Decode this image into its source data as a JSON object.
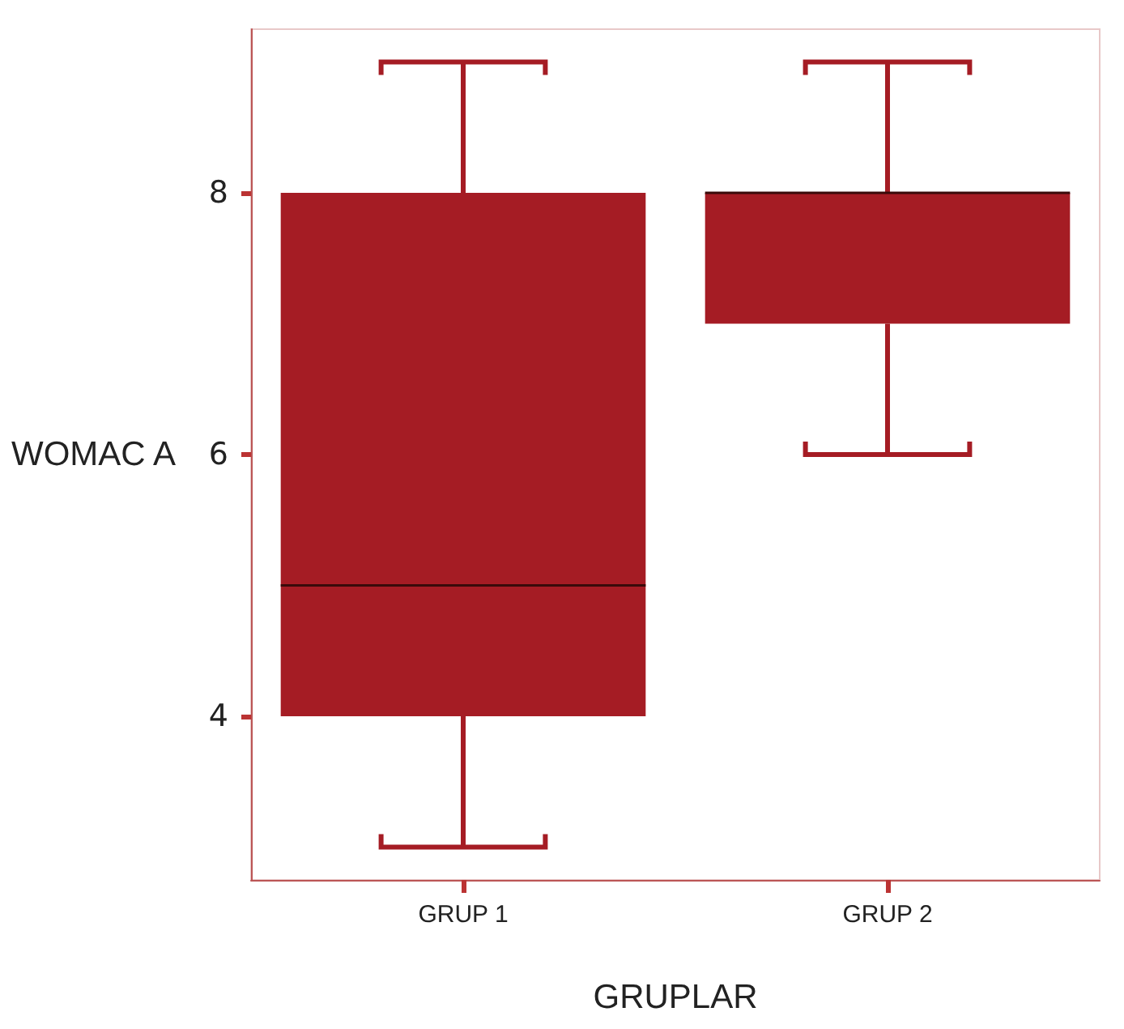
{
  "chart_data": {
    "type": "box",
    "xlabel": "GRUPLAR",
    "ylabel": "WOMAC A",
    "categories": [
      "GRUP 1",
      "GRUP 2"
    ],
    "color": "#a51c24",
    "ylim": [
      2.75,
      9.25
    ],
    "yticks": [
      4,
      6,
      8
    ],
    "grid": false,
    "boxes": [
      {
        "low": 3,
        "q1": 4,
        "median": 5,
        "q3": 8,
        "high": 9
      },
      {
        "low": 6,
        "q1": 7,
        "median": 8,
        "q3": 8,
        "high": 9
      }
    ]
  }
}
